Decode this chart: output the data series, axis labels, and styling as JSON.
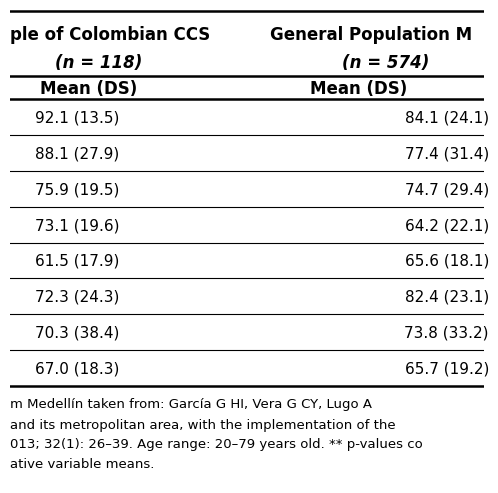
{
  "col1_header_line1": "ple of Colombian CCS",
  "col1_header_line2": "(n = 118)",
  "col2_header_line1": "General Population M",
  "col2_header_line2": "(n = 574)",
  "subheader": "Mean (DS)",
  "col1_values": [
    "92.1 (13.5)",
    "88.1 (27.9)",
    "75.9 (19.5)",
    "73.1 (19.6)",
    "61.5 (17.9)",
    "72.3 (24.3)",
    "70.3 (38.4)",
    "67.0 (18.3)"
  ],
  "col2_values": [
    "84.1 (24.1)",
    "77.4 (31.4)",
    "74.7 (29.4)",
    "64.2 (22.1)",
    "65.6 (18.1)",
    "82.4 (23.1)",
    "73.8 (33.2)",
    "65.7 (19.2)"
  ],
  "footer_lines": [
    "m Medellín taken from: García G HI, Vera G CY, Lugo A",
    "and its metropolitan area, with the implementation of the",
    "013; 32(1): 26–39. Age range: 20–79 years old. ** p-values co",
    "ative variable means."
  ],
  "bg_color": "#ffffff",
  "text_color": "#000000",
  "footer_italic_word": "p",
  "font_size": 11,
  "header_font_size": 12,
  "footer_font_size": 9.5
}
